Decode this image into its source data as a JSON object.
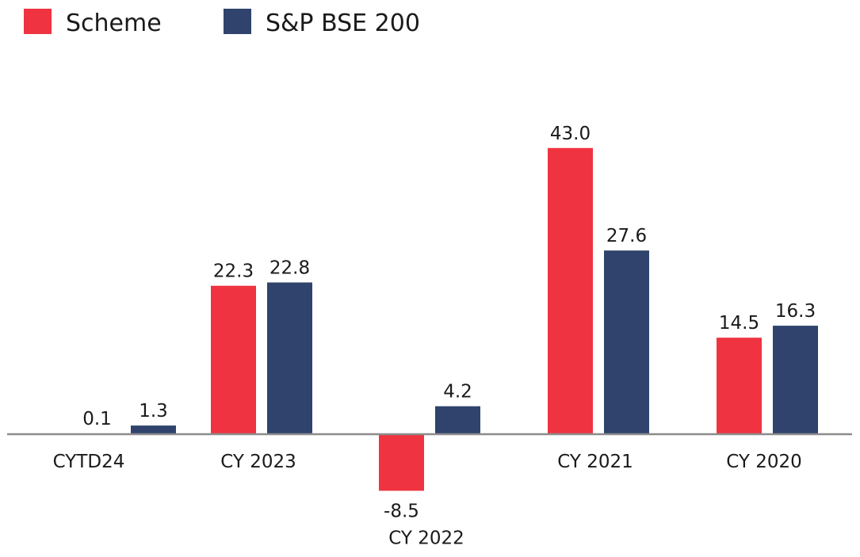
{
  "chart_data": {
    "type": "bar",
    "categories": [
      "CYTD24",
      "CY 2023",
      "CY 2022",
      "CY 2021",
      "CY 2020"
    ],
    "series": [
      {
        "name": "Scheme",
        "color": "#ef3340",
        "values": [
          0.1,
          22.3,
          -8.5,
          43.0,
          14.5
        ],
        "labels": [
          "0.1",
          "22.3",
          "-8.5",
          "43.0",
          "14.5"
        ]
      },
      {
        "name": "S&P BSE 200",
        "color": "#2f436c",
        "values": [
          1.3,
          22.8,
          4.2,
          27.6,
          16.3
        ],
        "labels": [
          "1.3",
          "22.8",
          "4.2",
          "27.6",
          "16.3"
        ]
      }
    ],
    "legend_position": "top-left",
    "grid": false,
    "axis_color": "#8c8c8c",
    "ylim": [
      -10,
      50
    ]
  }
}
